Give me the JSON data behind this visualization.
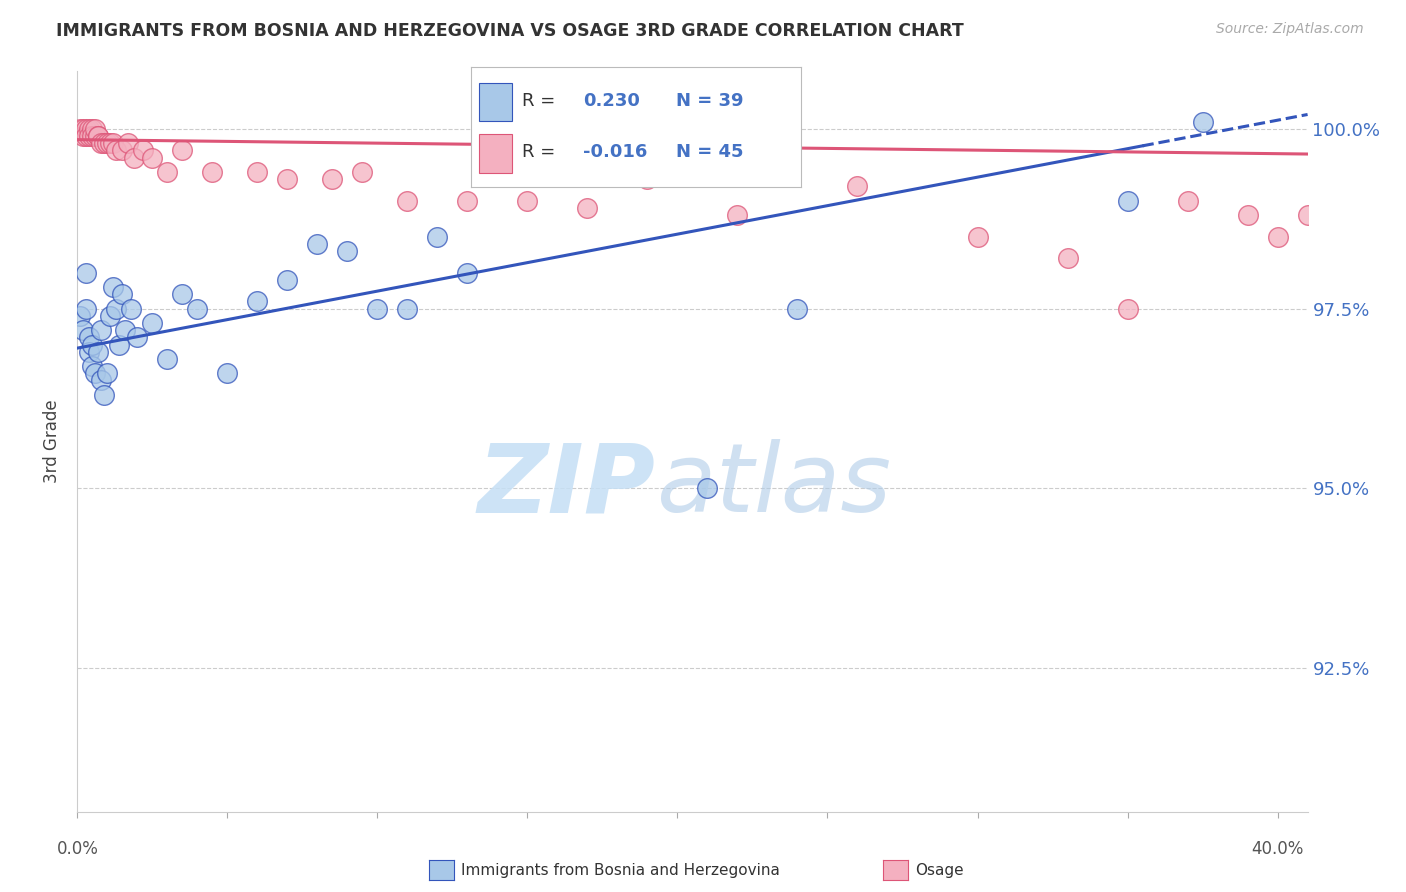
{
  "title": "IMMIGRANTS FROM BOSNIA AND HERZEGOVINA VS OSAGE 3RD GRADE CORRELATION CHART",
  "source": "Source: ZipAtlas.com",
  "ylabel": "3rd Grade",
  "xlim": [
    0.0,
    0.41
  ],
  "ylim": [
    0.905,
    1.008
  ],
  "yticks": [
    0.925,
    0.95,
    0.975,
    1.0
  ],
  "ytick_labels": [
    "92.5%",
    "95.0%",
    "97.5%",
    "100.0%"
  ],
  "legend_r_blue": "0.230",
  "legend_n_blue": "39",
  "legend_r_pink": "-0.016",
  "legend_n_pink": "45",
  "blue_color": "#a8c8e8",
  "pink_color": "#f4b0c0",
  "trend_blue": "#3355bb",
  "trend_pink": "#dd5577",
  "blue_scatter_x": [
    0.001,
    0.002,
    0.003,
    0.003,
    0.004,
    0.004,
    0.005,
    0.005,
    0.006,
    0.007,
    0.008,
    0.008,
    0.009,
    0.01,
    0.011,
    0.012,
    0.013,
    0.014,
    0.015,
    0.016,
    0.018,
    0.02,
    0.025,
    0.03,
    0.035,
    0.04,
    0.05,
    0.06,
    0.07,
    0.08,
    0.09,
    0.1,
    0.11,
    0.12,
    0.13,
    0.21,
    0.24,
    0.35,
    0.375
  ],
  "blue_scatter_y": [
    0.974,
    0.972,
    0.98,
    0.975,
    0.971,
    0.969,
    0.97,
    0.967,
    0.966,
    0.969,
    0.965,
    0.972,
    0.963,
    0.966,
    0.974,
    0.978,
    0.975,
    0.97,
    0.977,
    0.972,
    0.975,
    0.971,
    0.973,
    0.968,
    0.977,
    0.975,
    0.966,
    0.976,
    0.979,
    0.984,
    0.983,
    0.975,
    0.975,
    0.985,
    0.98,
    0.95,
    0.975,
    0.99,
    1.001
  ],
  "pink_scatter_x": [
    0.001,
    0.002,
    0.002,
    0.003,
    0.003,
    0.004,
    0.004,
    0.005,
    0.005,
    0.006,
    0.006,
    0.007,
    0.007,
    0.008,
    0.009,
    0.01,
    0.011,
    0.012,
    0.013,
    0.015,
    0.017,
    0.019,
    0.022,
    0.025,
    0.03,
    0.035,
    0.045,
    0.06,
    0.07,
    0.085,
    0.095,
    0.11,
    0.13,
    0.15,
    0.17,
    0.19,
    0.22,
    0.26,
    0.3,
    0.33,
    0.35,
    0.37,
    0.39,
    0.4,
    0.41
  ],
  "pink_scatter_y": [
    1.0,
    1.0,
    0.999,
    1.0,
    0.999,
    1.0,
    0.999,
    1.0,
    0.999,
    0.999,
    1.0,
    0.999,
    0.999,
    0.998,
    0.998,
    0.998,
    0.998,
    0.998,
    0.997,
    0.997,
    0.998,
    0.996,
    0.997,
    0.996,
    0.994,
    0.997,
    0.994,
    0.994,
    0.993,
    0.993,
    0.994,
    0.99,
    0.99,
    0.99,
    0.989,
    0.993,
    0.988,
    0.992,
    0.985,
    0.982,
    0.975,
    0.99,
    0.988,
    0.985,
    0.988
  ],
  "background_color": "#ffffff",
  "grid_color": "#cccccc"
}
